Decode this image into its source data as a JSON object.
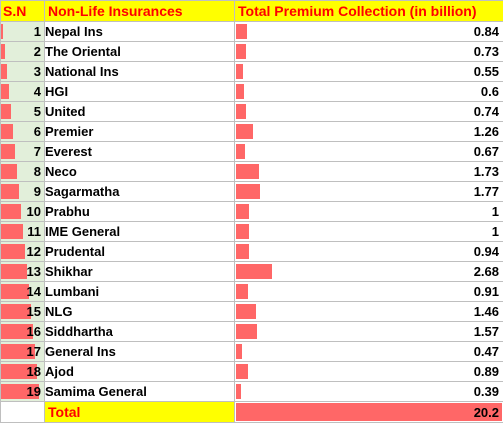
{
  "headers": {
    "sn": "S.N",
    "name": "Non-Life Insurances",
    "premium": "Total Premium Collection (in billion)"
  },
  "colors": {
    "header_bg": "#ffff00",
    "header_text": "#ff0000",
    "data_bar": "#ff6767",
    "sn_column_bg": "#e2efda",
    "grid_line": "#bfbfbf"
  },
  "sn_max": 19,
  "premium_max": 2.68,
  "rows": [
    {
      "sn": "1",
      "name": "Nepal Ins",
      "premium": "0.84"
    },
    {
      "sn": "2",
      "name": "The Oriental",
      "premium": "0.73"
    },
    {
      "sn": "3",
      "name": "National Ins",
      "premium": "0.55"
    },
    {
      "sn": "4",
      "name": "HGI",
      "premium": "0.6"
    },
    {
      "sn": "5",
      "name": "United",
      "premium": "0.74"
    },
    {
      "sn": "6",
      "name": "Premier",
      "premium": "1.26"
    },
    {
      "sn": "7",
      "name": "Everest",
      "premium": "0.67"
    },
    {
      "sn": "8",
      "name": "Neco",
      "premium": "1.73"
    },
    {
      "sn": "9",
      "name": "Sagarmatha",
      "premium": "1.77"
    },
    {
      "sn": "10",
      "name": "Prabhu",
      "premium": "1"
    },
    {
      "sn": "11",
      "name": "IME General",
      "premium": "1"
    },
    {
      "sn": "12",
      "name": "Prudental",
      "premium": "0.94"
    },
    {
      "sn": "13",
      "name": "Shikhar",
      "premium": "2.68"
    },
    {
      "sn": "14",
      "name": "Lumbani",
      "premium": "0.91"
    },
    {
      "sn": "15",
      "name": "NLG",
      "premium": "1.46"
    },
    {
      "sn": "16",
      "name": "Siddhartha",
      "premium": "1.57"
    },
    {
      "sn": "17",
      "name": "General Ins",
      "premium": "0.47"
    },
    {
      "sn": "18",
      "name": "Ajod",
      "premium": "0.89"
    },
    {
      "sn": "19",
      "name": "Samima General",
      "premium": "0.39"
    }
  ],
  "total": {
    "label": "Total",
    "value": "20.2"
  }
}
